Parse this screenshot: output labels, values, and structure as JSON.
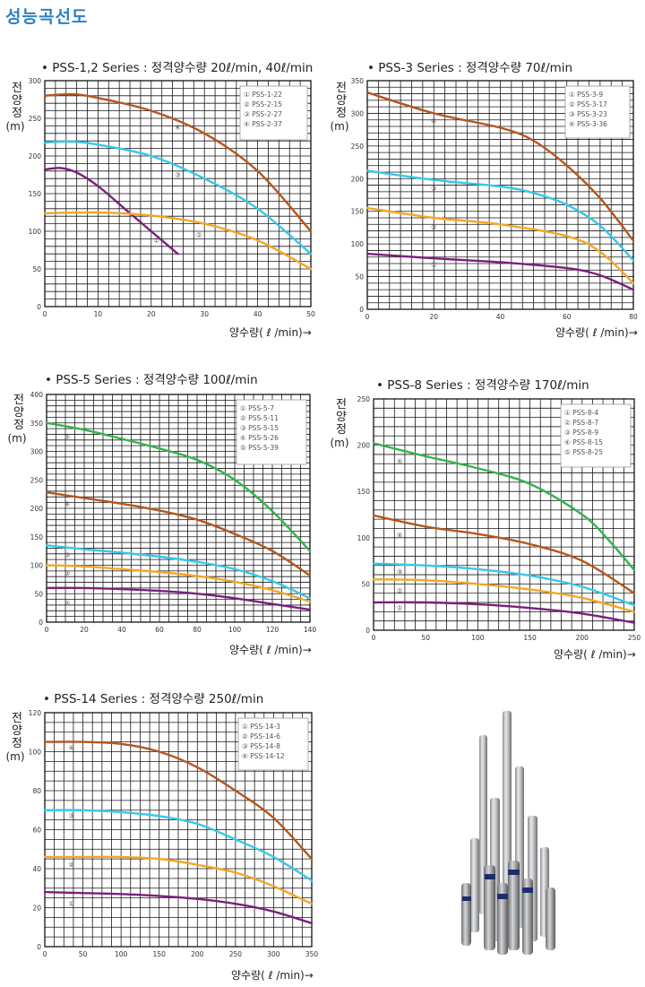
{
  "page": {
    "title": "성능곡선도"
  },
  "ylabel": {
    "line1": "전",
    "line2": "양",
    "line3": "정",
    "unit": "(m)"
  },
  "xlabel": "양수량( ℓ /min)→",
  "colors": {
    "purple": "#7b1f7d",
    "orange": "#f5a623",
    "cyan": "#35c8eb",
    "brown": "#b5561c",
    "green": "#33b34a",
    "title_blue": "#2f7fc4"
  },
  "photo": {
    "icon": "pump-photo"
  },
  "chart_data": [
    {
      "type": "line",
      "title": "• PSS-1,2 Series : 정격양수량 20ℓ/min, 40ℓ/min",
      "xlim": [
        0,
        50
      ],
      "ylim": [
        0,
        300
      ],
      "xticks": [
        0,
        10,
        20,
        30,
        40,
        50
      ],
      "yticks": [
        0,
        50,
        100,
        150,
        200,
        250,
        300
      ],
      "xgrid": 25,
      "ygrid": 30,
      "legend": [
        "① PSS-1-22",
        "② PSS-2-15",
        "③ PSS-2-27",
        "④ PSS-2-37"
      ],
      "series": [
        {
          "name": "①",
          "color": "purple",
          "label_at": [
            21,
            85
          ],
          "x": [
            0,
            3,
            6,
            10,
            15,
            20,
            25
          ],
          "y": [
            182,
            184,
            178,
            160,
            130,
            100,
            70
          ]
        },
        {
          "name": "②",
          "color": "orange",
          "label_at": [
            29,
            92
          ],
          "x": [
            0,
            10,
            20,
            30,
            40,
            50
          ],
          "y": [
            124,
            125,
            121,
            110,
            88,
            50
          ]
        },
        {
          "name": "③",
          "color": "cyan",
          "label_at": [
            25,
            172
          ],
          "x": [
            0,
            5,
            10,
            20,
            30,
            40,
            50
          ],
          "y": [
            218,
            219,
            215,
            200,
            170,
            130,
            70
          ]
        },
        {
          "name": "④",
          "color": "brown",
          "label_at": [
            25,
            235
          ],
          "x": [
            0,
            5,
            10,
            20,
            30,
            40,
            50
          ],
          "y": [
            280,
            282,
            277,
            260,
            230,
            180,
            100
          ]
        }
      ]
    },
    {
      "type": "line",
      "title": "• PSS-3 Series : 정격양수량 70ℓ/min",
      "xlim": [
        0,
        80
      ],
      "ylim": [
        0,
        350
      ],
      "xticks": [
        0,
        20,
        40,
        60,
        80
      ],
      "yticks": [
        0,
        50,
        100,
        150,
        200,
        250,
        300,
        350
      ],
      "xgrid": 24,
      "ygrid": 35,
      "legend": [
        "① PSS-3-9",
        "② PSS-3-17",
        "③ PSS-3-23",
        "④ PSS-3-36"
      ],
      "series": [
        {
          "name": "①",
          "color": "purple",
          "label_at": [
            20,
            65
          ],
          "x": [
            0,
            20,
            40,
            60,
            70,
            80
          ],
          "y": [
            85,
            78,
            72,
            63,
            52,
            30
          ]
        },
        {
          "name": "②",
          "color": "orange",
          "label_at": [
            20,
            122
          ],
          "x": [
            0,
            20,
            40,
            60,
            70,
            80
          ],
          "y": [
            155,
            140,
            130,
            112,
            88,
            40
          ]
        },
        {
          "name": "③",
          "color": "cyan",
          "label_at": [
            20,
            182
          ],
          "x": [
            0,
            20,
            40,
            50,
            60,
            70,
            80
          ],
          "y": [
            212,
            198,
            188,
            178,
            160,
            128,
            75
          ]
        },
        {
          "name": "④",
          "color": "brown",
          "label_at": [
            20,
            285
          ],
          "x": [
            0,
            20,
            40,
            50,
            60,
            70,
            80
          ],
          "y": [
            332,
            300,
            278,
            258,
            220,
            170,
            105
          ]
        }
      ]
    },
    {
      "type": "line",
      "title": "• PSS-5 Series : 정격양수량 100ℓ/min",
      "xlim": [
        0,
        140
      ],
      "ylim": [
        0,
        400
      ],
      "xticks": [
        0,
        20,
        40,
        60,
        80,
        100,
        120,
        140
      ],
      "yticks": [
        0,
        50,
        100,
        150,
        200,
        250,
        300,
        350,
        400
      ],
      "xgrid": 28,
      "ygrid": 40,
      "legend": [
        "① PSS-5-7",
        "② PSS-5-11",
        "③ PSS-5-15",
        "④ PSS-5-26",
        "⑤ PSS-5-39"
      ],
      "series": [
        {
          "name": "①",
          "color": "purple",
          "label_at": [
            11,
            30
          ],
          "x": [
            0,
            20,
            40,
            60,
            80,
            100,
            120,
            140
          ],
          "y": [
            60,
            60,
            58,
            55,
            50,
            42,
            32,
            22
          ]
        },
        {
          "name": "②",
          "color": "orange",
          "label_at": [
            11,
            82
          ],
          "x": [
            0,
            20,
            40,
            60,
            80,
            100,
            120,
            140
          ],
          "y": [
            100,
            98,
            93,
            88,
            81,
            71,
            56,
            36
          ]
        },
        {
          "name": "③",
          "color": "cyan",
          "label_at": [
            11,
            114
          ],
          "x": [
            0,
            20,
            40,
            60,
            80,
            100,
            120,
            140
          ],
          "y": [
            135,
            128,
            122,
            115,
            106,
            93,
            72,
            42
          ]
        },
        {
          "name": "④",
          "color": "brown",
          "label_at": [
            11,
            204
          ],
          "x": [
            0,
            20,
            40,
            60,
            80,
            100,
            120,
            140
          ],
          "y": [
            228,
            218,
            208,
            196,
            180,
            155,
            125,
            82
          ]
        },
        {
          "name": "⑤",
          "color": "green",
          "label_at": [
            11,
            322
          ],
          "x": [
            0,
            20,
            40,
            60,
            80,
            100,
            120,
            140
          ],
          "y": [
            350,
            338,
            322,
            305,
            285,
            250,
            195,
            125
          ]
        }
      ]
    },
    {
      "type": "line",
      "title": "• PSS-8 Series : 정격양수량 170ℓ/min",
      "xlim": [
        0,
        250
      ],
      "ylim": [
        0,
        250
      ],
      "xticks": [
        0,
        50,
        100,
        150,
        200,
        250
      ],
      "yticks": [
        0,
        50,
        100,
        150,
        200,
        250
      ],
      "xgrid": 25,
      "ygrid": 25,
      "legend": [
        "① PSS-8-4",
        "② PSS-8-7",
        "③ PSS-8-9",
        "④ PSS-8-15",
        "⑤ PSS-8-25"
      ],
      "series": [
        {
          "name": "①",
          "color": "purple",
          "label_at": [
            25,
            22
          ],
          "x": [
            0,
            50,
            100,
            150,
            200,
            250
          ],
          "y": [
            30,
            30,
            28,
            24,
            18,
            8
          ]
        },
        {
          "name": "②",
          "color": "orange",
          "label_at": [
            25,
            40
          ],
          "x": [
            0,
            50,
            100,
            150,
            200,
            250
          ],
          "y": [
            55,
            54,
            50,
            44,
            35,
            20
          ]
        },
        {
          "name": "③",
          "color": "cyan",
          "label_at": [
            25,
            61
          ],
          "x": [
            0,
            50,
            100,
            150,
            200,
            250
          ],
          "y": [
            72,
            70,
            66,
            59,
            47,
            27
          ]
        },
        {
          "name": "④",
          "color": "brown",
          "label_at": [
            25,
            101
          ],
          "x": [
            0,
            50,
            100,
            150,
            200,
            250
          ],
          "y": [
            124,
            112,
            104,
            93,
            75,
            40
          ]
        },
        {
          "name": "⑤",
          "color": "green",
          "label_at": [
            25,
            180
          ],
          "x": [
            0,
            50,
            100,
            150,
            200,
            225,
            250
          ],
          "y": [
            202,
            188,
            175,
            158,
            125,
            98,
            65
          ]
        }
      ]
    },
    {
      "type": "line",
      "title": "• PSS-14 Series : 정격양수량 250ℓ/min",
      "xlim": [
        0,
        350
      ],
      "ylim": [
        0,
        120
      ],
      "xticks": [
        0,
        50,
        100,
        150,
        200,
        250,
        300,
        350
      ],
      "yticks": [
        0,
        20,
        40,
        60,
        80,
        100,
        120
      ],
      "xgrid": 28,
      "ygrid": 24,
      "legend": [
        "① PSS-14-3",
        "② PSS-14-6",
        "③ PSS-14-8",
        "④ PSS-14-12"
      ],
      "series": [
        {
          "name": "①",
          "color": "purple",
          "label_at": [
            35,
            21
          ],
          "x": [
            0,
            50,
            100,
            150,
            200,
            250,
            300,
            350
          ],
          "y": [
            28,
            27.5,
            27,
            26,
            24.5,
            22,
            18,
            12
          ]
        },
        {
          "name": "②",
          "color": "orange",
          "label_at": [
            35,
            41
          ],
          "x": [
            0,
            50,
            100,
            150,
            200,
            250,
            300,
            350
          ],
          "y": [
            46,
            46,
            46,
            45,
            42,
            38,
            31,
            22
          ]
        },
        {
          "name": "③",
          "color": "cyan",
          "label_at": [
            35,
            66
          ],
          "x": [
            0,
            50,
            100,
            150,
            200,
            250,
            300,
            350
          ],
          "y": [
            70,
            70,
            69,
            67,
            63,
            55,
            46,
            34
          ]
        },
        {
          "name": "④",
          "color": "brown",
          "label_at": [
            35,
            101
          ],
          "x": [
            0,
            50,
            100,
            150,
            200,
            250,
            300,
            350
          ],
          "y": [
            105,
            105,
            104,
            100,
            92,
            80,
            66,
            45
          ]
        }
      ]
    }
  ]
}
